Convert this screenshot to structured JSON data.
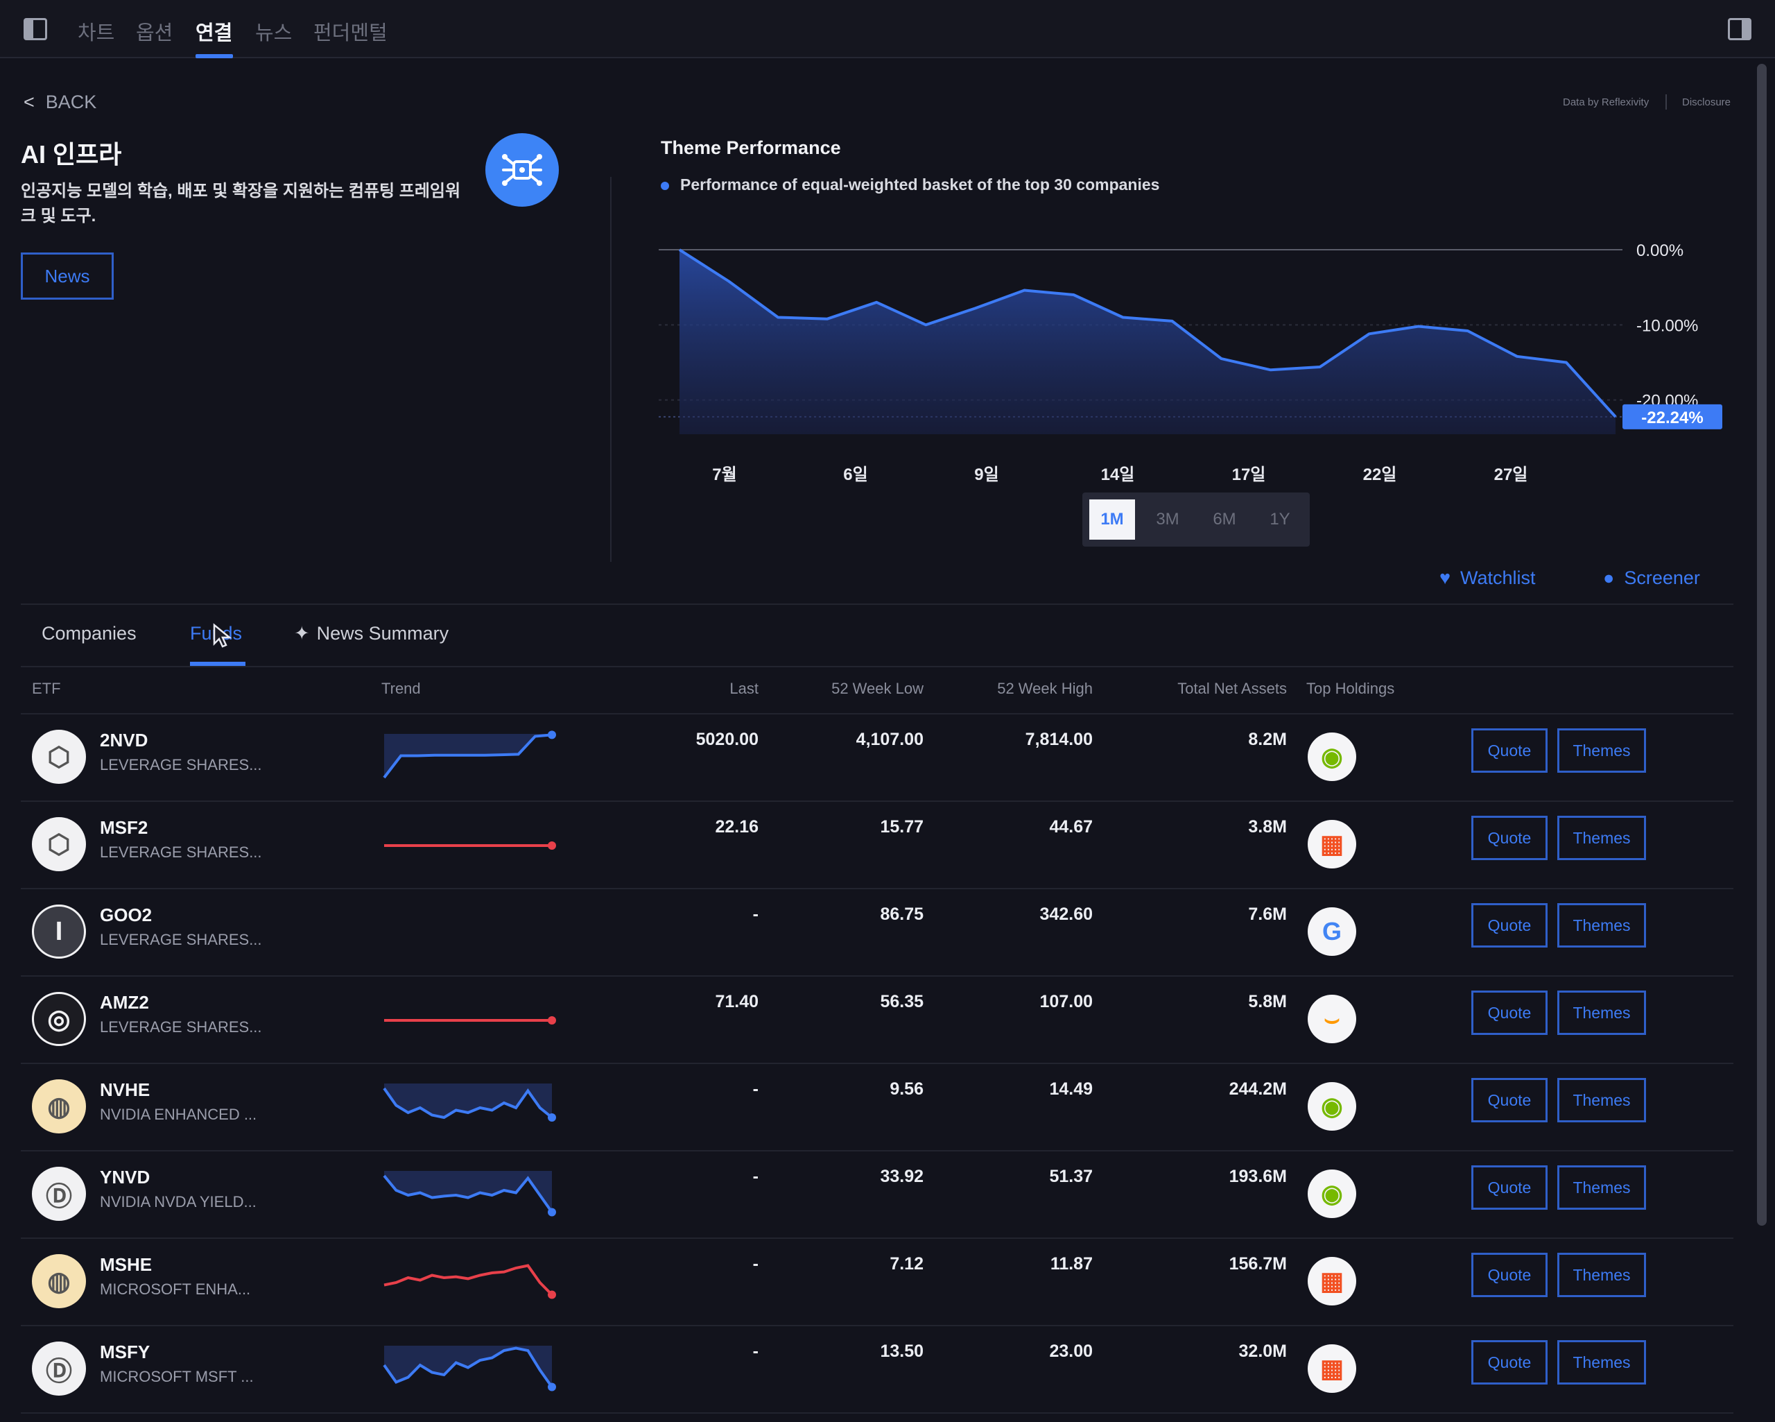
{
  "nav": {
    "tabs": [
      {
        "label": "차트"
      },
      {
        "label": "옵션"
      },
      {
        "label": "연결",
        "active": true
      },
      {
        "label": "뉴스"
      },
      {
        "label": "펀더멘털"
      }
    ]
  },
  "header": {
    "back_label": "BACK",
    "data_by": "Data by Reflexivity",
    "disclosure": "Disclosure"
  },
  "theme": {
    "title": "AI 인프라",
    "description": "인공지능 모델의 학습, 배포 및 확장을 지원하는 컴퓨팅 프레임워크 및 도구.",
    "news_button": "News",
    "icon": "network-chip-icon"
  },
  "performance": {
    "title": "Theme Performance",
    "subtitle": "Performance of equal-weighted basket of the top 30 companies",
    "current_badge": "-22.24%",
    "range_buttons": [
      {
        "label": "1M",
        "active": true
      },
      {
        "label": "3M"
      },
      {
        "label": "6M"
      },
      {
        "label": "1Y"
      }
    ]
  },
  "chart_data": {
    "type": "area",
    "title": "Theme Performance",
    "x_tick_labels": [
      "7월",
      "6일",
      "9일",
      "14일",
      "17일",
      "22일",
      "27일"
    ],
    "y_tick_labels": [
      "0.00%",
      "-10.00%",
      "-20.00%"
    ],
    "ylim": [
      -24,
      0
    ],
    "series": [
      {
        "values": [
          0,
          -4.2,
          -9.0,
          -9.2,
          -7.0,
          -10.0,
          -7.8,
          -5.4,
          -6.0,
          -9.0,
          -9.5,
          -14.5,
          -16.0,
          -15.6,
          -11.2,
          -10.2,
          -10.8,
          -14.2,
          -15.0,
          -22.24
        ]
      }
    ],
    "grid": true,
    "accent_color": "#3d7bf5"
  },
  "actions": {
    "watchlist_label": "Watchlist",
    "screener_label": "Screener"
  },
  "tabs": {
    "companies": "Companies",
    "funds": "Funds",
    "news_summary": "News Summary"
  },
  "table": {
    "columns": {
      "etf": "ETF",
      "trend": "Trend",
      "last": "Last",
      "low": "52 Week Low",
      "high": "52 Week High",
      "assets": "Total Net Assets",
      "holdings": "Top Holdings"
    },
    "quote_label": "Quote",
    "themes_label": "Themes",
    "rows": [
      {
        "ticker": "2NVD",
        "name": "LEVERAGE SHARES...",
        "last": "5020.00",
        "low": "4,107.00",
        "high": "7,814.00",
        "assets": "8.2M",
        "holding": "nvidia-logo-icon",
        "trend_color": "#3d7bf5",
        "trend": [
          0.1,
          0.55,
          0.55,
          0.56,
          0.56,
          0.56,
          0.56,
          0.57,
          0.58,
          0.95,
          0.98
        ]
      },
      {
        "ticker": "MSF2",
        "name": "LEVERAGE SHARES...",
        "last": "22.16",
        "low": "15.77",
        "high": "44.67",
        "assets": "3.8M",
        "holding": "microsoft-logo-icon",
        "trend_color": "#e8404a",
        "trend": [
          0.5,
          0.5,
          0.5,
          0.5,
          0.5,
          0.5,
          0.5,
          0.5
        ]
      },
      {
        "ticker": "GOO2",
        "name": "LEVERAGE SHARES...",
        "last": "-",
        "low": "86.75",
        "high": "342.60",
        "assets": "7.6M",
        "holding": "google-logo-icon",
        "trend_color": "#3d7bf5",
        "trend": []
      },
      {
        "ticker": "AMZ2",
        "name": "LEVERAGE SHARES...",
        "last": "71.40",
        "low": "56.35",
        "high": "107.00",
        "assets": "5.8M",
        "holding": "amazon-logo-icon",
        "trend_color": "#e8404a",
        "trend": [
          0.5,
          0.5,
          0.5,
          0.5,
          0.5,
          0.5,
          0.5,
          0.5
        ]
      },
      {
        "ticker": "NVHE",
        "name": "NVIDIA ENHANCED ...",
        "last": "-",
        "low": "9.56",
        "high": "14.49",
        "assets": "244.2M",
        "holding": "nvidia-logo-icon",
        "trend_color": "#3d7bf5",
        "trend": [
          0.9,
          0.55,
          0.4,
          0.5,
          0.35,
          0.3,
          0.45,
          0.4,
          0.5,
          0.45,
          0.6,
          0.5,
          0.85,
          0.5,
          0.3
        ]
      },
      {
        "ticker": "YNVD",
        "name": "NVIDIA NVDA YIELD...",
        "last": "-",
        "low": "33.92",
        "high": "51.37",
        "assets": "193.6M",
        "holding": "nvidia-logo-icon",
        "trend_color": "#3d7bf5",
        "trend": [
          0.9,
          0.6,
          0.5,
          0.55,
          0.45,
          0.48,
          0.5,
          0.45,
          0.55,
          0.5,
          0.6,
          0.55,
          0.85,
          0.5,
          0.15
        ]
      },
      {
        "ticker": "MSHE",
        "name": "MICROSOFT ENHA...",
        "last": "-",
        "low": "7.12",
        "high": "11.87",
        "assets": "156.7M",
        "holding": "microsoft-logo-icon",
        "trend_color": "#e8404a",
        "trend": [
          0.45,
          0.5,
          0.6,
          0.55,
          0.65,
          0.6,
          0.62,
          0.58,
          0.65,
          0.7,
          0.72,
          0.8,
          0.85,
          0.5,
          0.25
        ]
      },
      {
        "ticker": "MSFY",
        "name": "MICROSOFT MSFT ...",
        "last": "-",
        "low": "13.50",
        "high": "23.00",
        "assets": "32.0M",
        "holding": "microsoft-logo-icon",
        "trend_color": "#3d7bf5",
        "trend": [
          0.6,
          0.25,
          0.35,
          0.6,
          0.45,
          0.4,
          0.65,
          0.55,
          0.7,
          0.75,
          0.9,
          0.95,
          0.9,
          0.5,
          0.15
        ]
      }
    ]
  }
}
